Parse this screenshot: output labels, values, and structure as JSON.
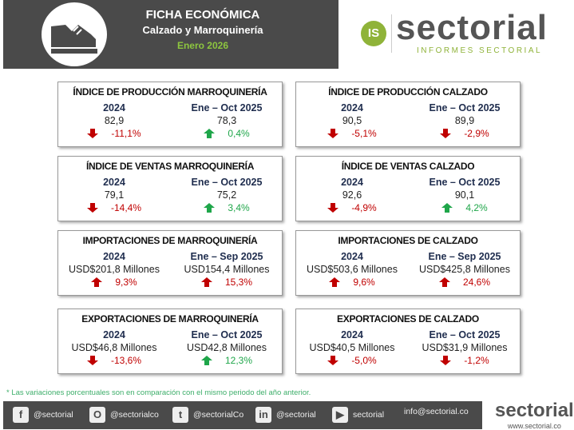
{
  "header": {
    "title": "FICHA ECONÓMICA",
    "subtitle": "Calzado y Marroquinería",
    "date": "Enero 2026"
  },
  "logo": {
    "badge": "IS",
    "brand": "sectorial",
    "tagline": "INFORMES SECTORIAL"
  },
  "colors": {
    "up_good": "#1fa64a",
    "down_bad": "#c00000",
    "header_bg": "#4a4a4a"
  },
  "cards": [
    {
      "title": "ÍNDICE DE PRODUCCIÓN MARROQUINERÍA",
      "cols": [
        {
          "period": "2024",
          "value": "82,9",
          "change": "-11,1%",
          "dir": "down",
          "tone": "red"
        },
        {
          "period": "Ene – Oct 2025",
          "value": "78,3",
          "change": "0,4%",
          "dir": "up",
          "tone": "green"
        }
      ]
    },
    {
      "title": "ÍNDICE DE PRODUCCIÓN CALZADO",
      "cols": [
        {
          "period": "2024",
          "value": "90,5",
          "change": "-5,1%",
          "dir": "down",
          "tone": "red"
        },
        {
          "period": "Ene – Oct 2025",
          "value": "89,9",
          "change": "-2,9%",
          "dir": "down",
          "tone": "red"
        }
      ]
    },
    {
      "title": "ÍNDICE DE VENTAS MARROQUINERÍA",
      "cols": [
        {
          "period": "2024",
          "value": "79,1",
          "change": "-14,4%",
          "dir": "down",
          "tone": "red"
        },
        {
          "period": "Ene – Oct 2025",
          "value": "75,2",
          "change": "3,4%",
          "dir": "up",
          "tone": "green"
        }
      ]
    },
    {
      "title": "ÍNDICE DE VENTAS CALZADO",
      "cols": [
        {
          "period": "2024",
          "value": "92,6",
          "change": "-4,9%",
          "dir": "down",
          "tone": "red"
        },
        {
          "period": "Ene – Oct 2025",
          "value": "90,1",
          "change": "4,2%",
          "dir": "up",
          "tone": "green"
        }
      ]
    },
    {
      "title": "IMPORTACIONES DE MARROQUINERÍA",
      "cols": [
        {
          "period": "2024",
          "value": "USD$201,8 Millones",
          "change": "9,3%",
          "dir": "up",
          "tone": "red"
        },
        {
          "period": "Ene – Sep 2025",
          "value": "USD154,4 Millones",
          "change": "15,3%",
          "dir": "up",
          "tone": "red"
        }
      ]
    },
    {
      "title": "IMPORTACIONES DE CALZADO",
      "cols": [
        {
          "period": "2024",
          "value": "USD$503,6 Millones",
          "change": "9,6%",
          "dir": "up",
          "tone": "red"
        },
        {
          "period": "Ene – Sep 2025",
          "value": "USD$425,8 Millones",
          "change": "24,6%",
          "dir": "up",
          "tone": "red"
        }
      ]
    },
    {
      "title": "EXPORTACIONES DE MARROQUINERÍA",
      "cols": [
        {
          "period": "2024",
          "value": "USD$46,8 Millones",
          "change": "-13,6%",
          "dir": "down",
          "tone": "red"
        },
        {
          "period": "Ene – Oct 2025",
          "value": "USD42,8 Millones",
          "change": "12,3%",
          "dir": "up",
          "tone": "green"
        }
      ]
    },
    {
      "title": "EXPORTACIONES DE CALZADO",
      "cols": [
        {
          "period": "2024",
          "value": "USD$40,5 Millones",
          "change": "-5,0%",
          "dir": "down",
          "tone": "red"
        },
        {
          "period": "Ene – Oct 2025",
          "value": "USD$31,9 Millones",
          "change": "-1,2%",
          "dir": "down",
          "tone": "red"
        }
      ]
    }
  ],
  "footnote": "* Las variaciones porcentuales son en comparación con el mismo periodo del año anterior.",
  "footer": {
    "items": [
      {
        "icon": "facebook-icon",
        "glyph": "f",
        "label": "@sectorial"
      },
      {
        "icon": "instagram-icon",
        "glyph": "O",
        "label": "@sectorialco"
      },
      {
        "icon": "twitter-icon",
        "glyph": "t",
        "label": "@sectorialCo"
      },
      {
        "icon": "linkedin-icon",
        "glyph": "in",
        "label": "@sectorial"
      },
      {
        "icon": "youtube-icon",
        "glyph": "▶",
        "label": "sectorial"
      },
      {
        "icon": "",
        "glyph": "",
        "label": "info@sectorial.co"
      }
    ],
    "brand": "sectorial",
    "url": "www.sectorial.co"
  }
}
